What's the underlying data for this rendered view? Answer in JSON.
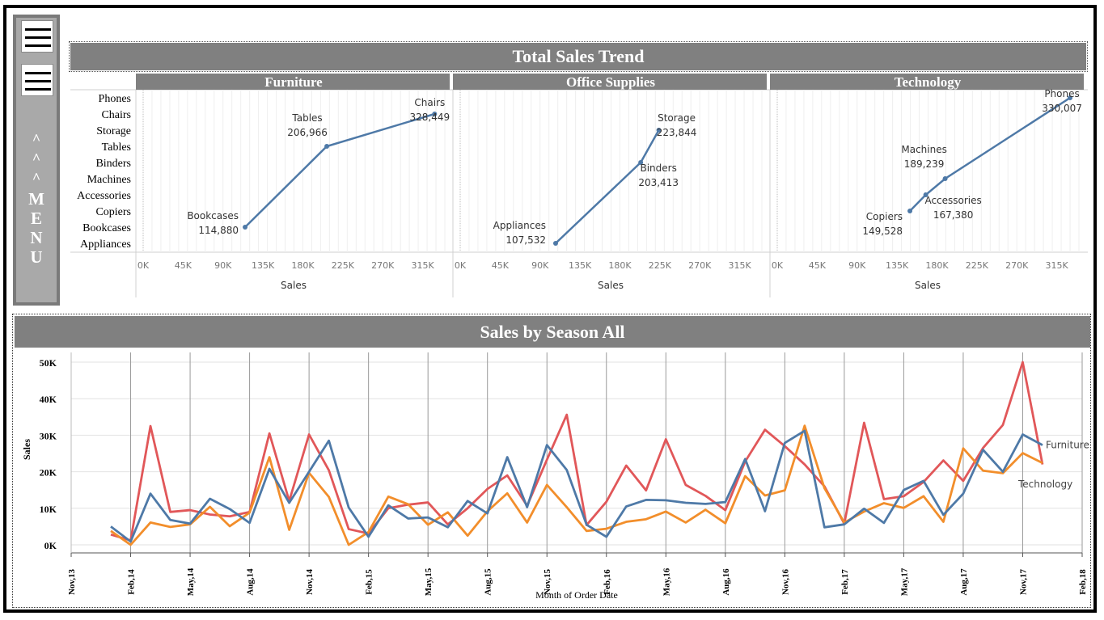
{
  "sidebar": {
    "menu_caret": "^",
    "menu_letters": [
      "M",
      "E",
      "N",
      "U"
    ]
  },
  "sales_trend": {
    "title": "Total Sales Trend",
    "x_axis_label": "Sales",
    "x_ticks": [
      "0K",
      "45K",
      "90K",
      "135K",
      "180K",
      "225K",
      "270K",
      "315K"
    ],
    "rows": [
      "Phones",
      "Chairs",
      "Storage",
      "Tables",
      "Binders",
      "Machines",
      "Accessories",
      "Copiers",
      "Bookcases",
      "Appliances"
    ]
  },
  "season": {
    "title": "Sales by Season All"
  },
  "colors": {
    "banner": "#808080",
    "sidebar": "#a9a9a9",
    "line_blue": "#4e79a7",
    "line_orange": "#f28e2b",
    "line_red": "#e15759"
  },
  "chart_data": [
    {
      "type": "line",
      "title": "Furniture",
      "xlabel": "Sales",
      "xlim": [
        0,
        340000
      ],
      "points": [
        {
          "category": "Bookcases",
          "value": 114880,
          "label": "114,880"
        },
        {
          "category": "Tables",
          "value": 206966,
          "label": "206,966"
        },
        {
          "category": "Chairs",
          "value": 328449,
          "label": "328,449"
        }
      ]
    },
    {
      "type": "line",
      "title": "Office Supplies",
      "xlabel": "Sales",
      "xlim": [
        0,
        340000
      ],
      "points": [
        {
          "category": "Appliances",
          "value": 107532,
          "label": "107,532"
        },
        {
          "category": "Binders",
          "value": 203413,
          "label": "203,413"
        },
        {
          "category": "Storage",
          "value": 223844,
          "label": "223,844"
        }
      ]
    },
    {
      "type": "line",
      "title": "Technology",
      "xlabel": "Sales",
      "xlim": [
        0,
        340000
      ],
      "points": [
        {
          "category": "Copiers",
          "value": 149528,
          "label": "149,528"
        },
        {
          "category": "Accessories",
          "value": 167380,
          "label": "167,380"
        },
        {
          "category": "Machines",
          "value": 189239,
          "label": "189,239"
        },
        {
          "category": "Phones",
          "value": 330007,
          "label": "330,007"
        }
      ]
    },
    {
      "type": "line",
      "title": "Sales by Season All",
      "xlabel": "Month of Order Date",
      "ylabel": "Sales",
      "ylim": [
        0,
        52000
      ],
      "y_ticks": [
        "0K",
        "10K",
        "20K",
        "30K",
        "40K",
        "50K"
      ],
      "x_ticks": [
        "Nov,13",
        "Feb,14",
        "May,14",
        "Aug,14",
        "Nov,14",
        "Feb,15",
        "May,15",
        "Aug,15",
        "Nov,15",
        "Feb,16",
        "May,16",
        "Aug,16",
        "Nov,16",
        "Feb,17",
        "May,17",
        "Aug,17",
        "Nov,17",
        "Feb,18"
      ],
      "x_start": "2014-01",
      "series": [
        {
          "name": "Furniture",
          "color": "#4e79a7",
          "values": [
            5000,
            900,
            14000,
            6800,
            5800,
            12600,
            9800,
            6000,
            20800,
            11500,
            20000,
            28500,
            10200,
            2200,
            10800,
            7200,
            7500,
            4800,
            12000,
            8600,
            24000,
            10300,
            27300,
            20500,
            5500,
            2200,
            10500,
            12300,
            12200,
            11500,
            11200,
            11700,
            23500,
            9200,
            27900,
            31200,
            4800,
            5600,
            9900,
            6000,
            15000,
            17500,
            8200,
            14000,
            26000,
            20000,
            30200,
            27300
          ]
        },
        {
          "name": "Technology",
          "color": "#f28e2b",
          "values": [
            3800,
            0,
            6100,
            4900,
            5600,
            10400,
            5100,
            8800,
            24000,
            4100,
            19700,
            13100,
            0,
            3500,
            13200,
            11100,
            5500,
            8900,
            2500,
            9200,
            14100,
            6100,
            16400,
            10300,
            3800,
            4400,
            6300,
            7000,
            9100,
            6100,
            9600,
            5900,
            18800,
            13500,
            14900,
            32600,
            15500,
            6100,
            9100,
            11400,
            10100,
            13300,
            6300,
            26400,
            20300,
            19600,
            25100,
            22400
          ]
        },
        {
          "name": "Office Supplies",
          "color": "#e15759",
          "values": [
            2800,
            1200,
            32500,
            9000,
            9500,
            8300,
            7800,
            9000,
            30500,
            12000,
            30200,
            20400,
            4300,
            3100,
            10000,
            11000,
            11600,
            5600,
            10000,
            15300,
            19000,
            10700,
            23300,
            35600,
            5400,
            11800,
            21700,
            14900,
            28900,
            16400,
            13400,
            9500,
            22800,
            31500,
            27000,
            22000,
            16000,
            5800,
            33400,
            12500,
            13300,
            17200,
            23100,
            17500,
            26500,
            32800,
            50000,
            22000
          ]
        }
      ],
      "end_labels": [
        "Furniture",
        "Technology"
      ]
    }
  ]
}
